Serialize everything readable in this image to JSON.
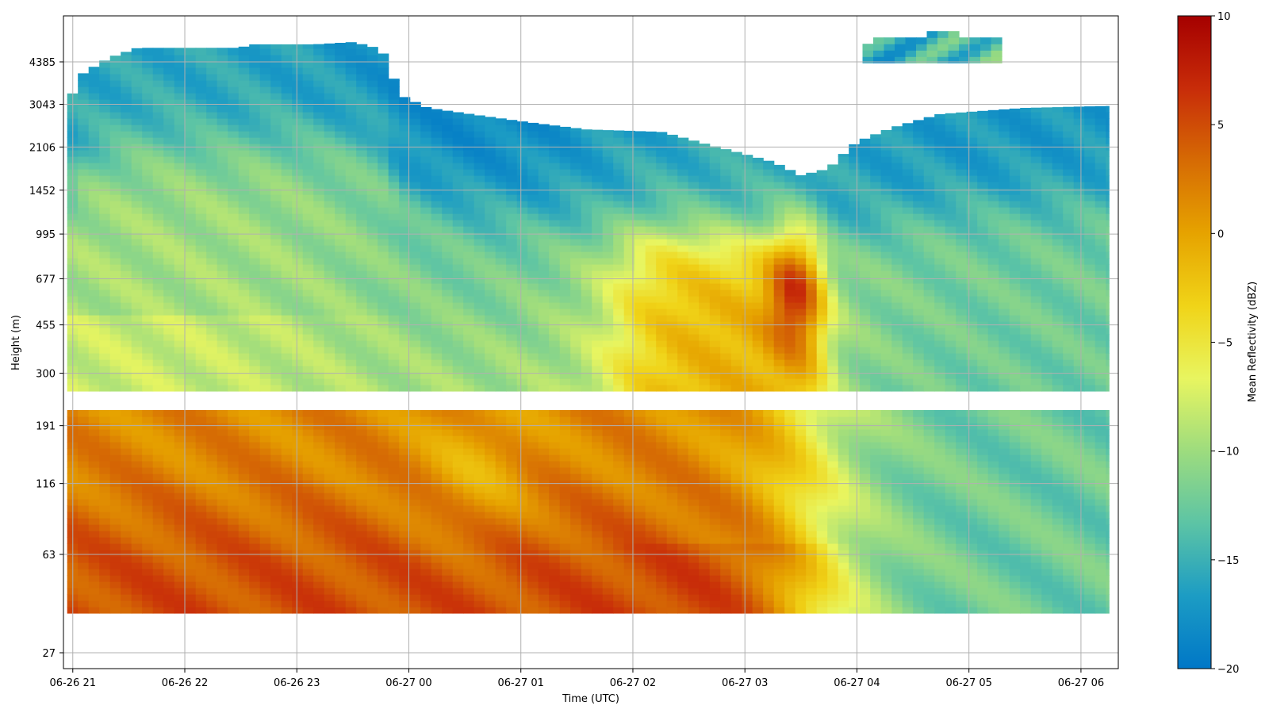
{
  "chart_data": {
    "type": "heatmap",
    "title": "",
    "xlabel": "Time (UTC)",
    "ylabel": "Height (m)",
    "x_ticks": [
      "06-26 21",
      "06-26 22",
      "06-26 23",
      "06-27 00",
      "06-27 01",
      "06-27 02",
      "06-27 03",
      "06-27 04",
      "06-27 05",
      "06-27 06"
    ],
    "y_ticks": [
      "27",
      "63",
      "116",
      "191",
      "300",
      "455",
      "677",
      "995",
      "1452",
      "2106",
      "3043",
      "4385"
    ],
    "xlim": [
      "06-26 20:55",
      "06-27 06:20"
    ],
    "y_scale": "log",
    "grid": true,
    "colorbar": {
      "label": "Mean Reflectivity (dBZ)",
      "ticks": [
        "10",
        "5",
        "0",
        "−5",
        "−10",
        "−15",
        "−20"
      ],
      "vmin": -20,
      "vmax": 10,
      "colormap": [
        "#0077c7",
        "#1c9cc4",
        "#5cc4a5",
        "#9ddc7e",
        "#e8f560",
        "#f0d418",
        "#e6a300",
        "#d66b04",
        "#c82c09",
        "#a50000"
      ]
    },
    "data_extent": {
      "time_start": "06-26 20:57",
      "time_end": "06-27 06:15",
      "height_bottom_m": 38
    },
    "top_boundary_profile": [
      {
        "time": "06-26 20:57",
        "height_m": 3000
      },
      {
        "time": "06-26 21:05",
        "height_m": 3950
      },
      {
        "time": "06-26 21:20",
        "height_m": 4550
      },
      {
        "time": "06-26 21:35",
        "height_m": 4950
      },
      {
        "time": "06-26 22:30",
        "height_m": 4950
      },
      {
        "time": "06-26 22:35",
        "height_m": 5100
      },
      {
        "time": "06-26 23:10",
        "height_m": 5100
      },
      {
        "time": "06-26 23:30",
        "height_m": 5200
      },
      {
        "time": "06-26 23:45",
        "height_m": 4900
      },
      {
        "time": "06-26 23:55",
        "height_m": 3300
      },
      {
        "time": "06-27 00:10",
        "height_m": 2950
      },
      {
        "time": "06-27 00:40",
        "height_m": 2750
      },
      {
        "time": "06-27 01:05",
        "height_m": 2600
      },
      {
        "time": "06-27 01:35",
        "height_m": 2450
      },
      {
        "time": "06-27 02:15",
        "height_m": 2400
      },
      {
        "time": "06-27 02:40",
        "height_m": 2150
      },
      {
        "time": "06-27 03:15",
        "height_m": 1850
      },
      {
        "time": "06-27 03:30",
        "height_m": 1650
      },
      {
        "time": "06-27 03:45",
        "height_m": 1750
      },
      {
        "time": "06-27 04:00",
        "height_m": 2200
      },
      {
        "time": "06-27 04:20",
        "height_m": 2500
      },
      {
        "time": "06-27 04:45",
        "height_m": 2800
      },
      {
        "time": "06-27 05:30",
        "height_m": 2950
      },
      {
        "time": "06-27 06:15",
        "height_m": 3000
      }
    ],
    "gap_band_m": [
      218,
      262
    ],
    "upper_patch": {
      "time_start": "06-27 04:03",
      "time_end": "06-27 05:13",
      "height_bottom_m": 4350,
      "height_top_m": 5500,
      "value_dBZ": -13
    },
    "value_regions_dBZ": [
      {
        "region": "upper cloud top",
        "value": -18
      },
      {
        "region": "mid layer 1000-2000 m",
        "value": -10
      },
      {
        "region": "layer 300-1000 m",
        "value": -9
      },
      {
        "region": "core 06-27 02:00-03:45, 300-1000 m",
        "value": -2
      },
      {
        "region": "core 06-27 03:20-03:40, 550-800 m",
        "value": 7
      },
      {
        "region": "lower layer below 218 m, 06-26 21:00-06-27 03:30",
        "value": 2
      },
      {
        "region": "surface layer below 75 m",
        "value": 7
      },
      {
        "region": "lower layer after 06-27 04:00",
        "value": -13
      }
    ]
  }
}
